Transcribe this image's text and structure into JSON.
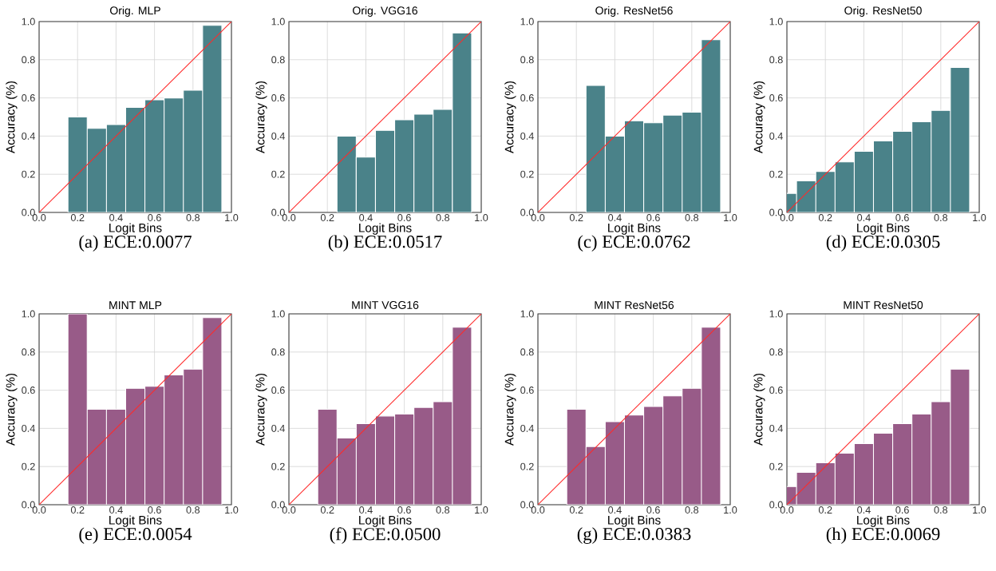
{
  "chart_data": [
    {
      "type": "bar",
      "title": "Orig. MLP",
      "xlabel": "Logit Bins",
      "ylabel": "Accuracy (%)",
      "annotations": [
        "(a) ECE:0.0077"
      ],
      "xlim": [
        0,
        1
      ],
      "ylim": [
        0,
        1
      ],
      "xticks": [
        {
          "value": 0,
          "label": "0.0"
        },
        {
          "value": 0.2,
          "label": "0.2"
        },
        {
          "value": 0.4,
          "label": "0.4"
        },
        {
          "value": 0.6,
          "label": "0.6"
        },
        {
          "value": 0.8,
          "label": "0.8"
        },
        {
          "value": 1,
          "label": "1.0"
        }
      ],
      "yticks": [
        {
          "value": 0,
          "label": "0.0"
        },
        {
          "value": 0.2,
          "label": "0.2"
        },
        {
          "value": 0.4,
          "label": "0.4"
        },
        {
          "value": 0.6,
          "label": "0.6"
        },
        {
          "value": 0.8,
          "label": "0.8"
        },
        {
          "value": 1,
          "label": "1.0"
        }
      ],
      "grid": true,
      "series": [
        {
          "color": "#4a8289",
          "x": [
            0.2,
            0.3,
            0.4,
            0.5,
            0.6,
            0.7,
            0.8,
            0.9
          ],
          "values": [
            0.5,
            0.44,
            0.46,
            0.55,
            0.59,
            0.6,
            0.64,
            0.98
          ]
        },
        {
          "type": "line",
          "color": "#ff2a2a",
          "x": [
            0,
            1
          ],
          "values": [
            0,
            1
          ]
        }
      ]
    },
    {
      "type": "bar",
      "title": "Orig. VGG16",
      "xlabel": "Logit Bins",
      "ylabel": "Accuracy (%)",
      "annotations": [
        "(b) ECE:0.0517"
      ],
      "xlim": [
        0,
        1
      ],
      "ylim": [
        0,
        1
      ],
      "xticks": [
        {
          "value": 0,
          "label": "0.0"
        },
        {
          "value": 0.2,
          "label": "0.2"
        },
        {
          "value": 0.4,
          "label": "0.4"
        },
        {
          "value": 0.6,
          "label": "0.6"
        },
        {
          "value": 0.8,
          "label": "0.8"
        },
        {
          "value": 1,
          "label": "1.0"
        }
      ],
      "yticks": [
        {
          "value": 0,
          "label": "0.0"
        },
        {
          "value": 0.2,
          "label": "0.2"
        },
        {
          "value": 0.4,
          "label": "0.4"
        },
        {
          "value": 0.6,
          "label": "0.6"
        },
        {
          "value": 0.8,
          "label": "0.8"
        },
        {
          "value": 1,
          "label": "1.0"
        }
      ],
      "grid": true,
      "series": [
        {
          "color": "#4a8289",
          "x": [
            0.3,
            0.4,
            0.5,
            0.6,
            0.7,
            0.8,
            0.9
          ],
          "values": [
            0.4,
            0.29,
            0.43,
            0.485,
            0.515,
            0.54,
            0.94
          ]
        },
        {
          "type": "line",
          "color": "#ff2a2a",
          "x": [
            0,
            1
          ],
          "values": [
            0,
            1
          ]
        }
      ]
    },
    {
      "type": "bar",
      "title": "Orig. ResNet56",
      "xlabel": "Logit Bins",
      "ylabel": "Accuracy (%)",
      "annotations": [
        "(c) ECE:0.0762"
      ],
      "xlim": [
        0,
        1
      ],
      "ylim": [
        0,
        1
      ],
      "xticks": [
        {
          "value": 0,
          "label": "0.0"
        },
        {
          "value": 0.2,
          "label": "0.2"
        },
        {
          "value": 0.4,
          "label": "0.4"
        },
        {
          "value": 0.6,
          "label": "0.6"
        },
        {
          "value": 0.8,
          "label": "0.8"
        },
        {
          "value": 1,
          "label": "1.0"
        }
      ],
      "yticks": [
        {
          "value": 0,
          "label": "0.0"
        },
        {
          "value": 0.2,
          "label": "0.2"
        },
        {
          "value": 0.4,
          "label": "0.4"
        },
        {
          "value": 0.6,
          "label": "0.6"
        },
        {
          "value": 0.8,
          "label": "0.8"
        },
        {
          "value": 1,
          "label": "1.0"
        }
      ],
      "grid": true,
      "series": [
        {
          "color": "#4a8289",
          "x": [
            0.3,
            0.4,
            0.5,
            0.6,
            0.7,
            0.8,
            0.9
          ],
          "values": [
            0.665,
            0.4,
            0.48,
            0.47,
            0.51,
            0.525,
            0.905
          ]
        },
        {
          "type": "line",
          "color": "#ff2a2a",
          "x": [
            0,
            1
          ],
          "values": [
            0,
            1
          ]
        }
      ]
    },
    {
      "type": "bar",
      "title": "Orig. ResNet50",
      "xlabel": "Logit Bins",
      "ylabel": "Accuracy (%)",
      "annotations": [
        "(d) ECE:0.0305"
      ],
      "xlim": [
        0,
        1
      ],
      "ylim": [
        0,
        1
      ],
      "xticks": [
        {
          "value": 0,
          "label": "0.0"
        },
        {
          "value": 0.2,
          "label": "0.2"
        },
        {
          "value": 0.4,
          "label": "0.4"
        },
        {
          "value": 0.6,
          "label": "0.6"
        },
        {
          "value": 0.8,
          "label": "0.8"
        },
        {
          "value": 1,
          "label": "1.0"
        }
      ],
      "yticks": [
        {
          "value": 0,
          "label": "0.0"
        },
        {
          "value": 0.2,
          "label": "0.2"
        },
        {
          "value": 0.4,
          "label": "0.4"
        },
        {
          "value": 0.6,
          "label": "0.6"
        },
        {
          "value": 0.8,
          "label": "0.8"
        },
        {
          "value": 1,
          "label": "1.0"
        }
      ],
      "grid": true,
      "series": [
        {
          "color": "#4a8289",
          "x": [
            0.0,
            0.1,
            0.2,
            0.3,
            0.4,
            0.5,
            0.6,
            0.7,
            0.8,
            0.9
          ],
          "values": [
            0.1,
            0.165,
            0.215,
            0.265,
            0.32,
            0.375,
            0.425,
            0.475,
            0.535,
            0.76
          ]
        },
        {
          "type": "line",
          "color": "#ff2a2a",
          "x": [
            0,
            1
          ],
          "values": [
            0,
            1
          ]
        }
      ]
    },
    {
      "type": "bar",
      "title": "MINT MLP",
      "xlabel": "Logit Bins",
      "ylabel": "Accuracy (%)",
      "annotations": [
        "(e) ECE:0.0054"
      ],
      "xlim": [
        0,
        1
      ],
      "ylim": [
        0,
        1
      ],
      "xticks": [
        {
          "value": 0,
          "label": "0.0"
        },
        {
          "value": 0.2,
          "label": "0.2"
        },
        {
          "value": 0.4,
          "label": "0.4"
        },
        {
          "value": 0.6,
          "label": "0.6"
        },
        {
          "value": 0.8,
          "label": "0.8"
        },
        {
          "value": 1,
          "label": "1.0"
        }
      ],
      "yticks": [
        {
          "value": 0,
          "label": "0.0"
        },
        {
          "value": 0.2,
          "label": "0.2"
        },
        {
          "value": 0.4,
          "label": "0.4"
        },
        {
          "value": 0.6,
          "label": "0.6"
        },
        {
          "value": 0.8,
          "label": "0.8"
        },
        {
          "value": 1,
          "label": "1.0"
        }
      ],
      "grid": true,
      "series": [
        {
          "color": "#985b88",
          "x": [
            0.2,
            0.3,
            0.4,
            0.5,
            0.6,
            0.7,
            0.8,
            0.9
          ],
          "values": [
            1.0,
            0.5,
            0.5,
            0.61,
            0.62,
            0.68,
            0.71,
            0.98
          ]
        },
        {
          "type": "line",
          "color": "#ff2a2a",
          "x": [
            0,
            1
          ],
          "values": [
            0,
            1
          ]
        }
      ]
    },
    {
      "type": "bar",
      "title": "MINT VGG16",
      "xlabel": "Logit Bins",
      "ylabel": "Accuracy (%)",
      "annotations": [
        "(f) ECE:0.0500"
      ],
      "xlim": [
        0,
        1
      ],
      "ylim": [
        0,
        1
      ],
      "xticks": [
        {
          "value": 0,
          "label": "0.0"
        },
        {
          "value": 0.2,
          "label": "0.2"
        },
        {
          "value": 0.4,
          "label": "0.4"
        },
        {
          "value": 0.6,
          "label": "0.6"
        },
        {
          "value": 0.8,
          "label": "0.8"
        },
        {
          "value": 1,
          "label": "1.0"
        }
      ],
      "yticks": [
        {
          "value": 0,
          "label": "0.0"
        },
        {
          "value": 0.2,
          "label": "0.2"
        },
        {
          "value": 0.4,
          "label": "0.4"
        },
        {
          "value": 0.6,
          "label": "0.6"
        },
        {
          "value": 0.8,
          "label": "0.8"
        },
        {
          "value": 1,
          "label": "1.0"
        }
      ],
      "grid": true,
      "series": [
        {
          "color": "#985b88",
          "x": [
            0.2,
            0.3,
            0.4,
            0.5,
            0.6,
            0.7,
            0.8,
            0.9
          ],
          "values": [
            0.5,
            0.35,
            0.425,
            0.465,
            0.475,
            0.51,
            0.54,
            0.93
          ]
        },
        {
          "type": "line",
          "color": "#ff2a2a",
          "x": [
            0,
            1
          ],
          "values": [
            0,
            1
          ]
        }
      ]
    },
    {
      "type": "bar",
      "title": "MINT ResNet56",
      "xlabel": "Logit Bins",
      "ylabel": "Accuracy (%)",
      "annotations": [
        "(g) ECE:0.0383"
      ],
      "xlim": [
        0,
        1
      ],
      "ylim": [
        0,
        1
      ],
      "xticks": [
        {
          "value": 0,
          "label": "0.0"
        },
        {
          "value": 0.2,
          "label": "0.2"
        },
        {
          "value": 0.4,
          "label": "0.4"
        },
        {
          "value": 0.6,
          "label": "0.6"
        },
        {
          "value": 0.8,
          "label": "0.8"
        },
        {
          "value": 1,
          "label": "1.0"
        }
      ],
      "yticks": [
        {
          "value": 0,
          "label": "0.0"
        },
        {
          "value": 0.2,
          "label": "0.2"
        },
        {
          "value": 0.4,
          "label": "0.4"
        },
        {
          "value": 0.6,
          "label": "0.6"
        },
        {
          "value": 0.8,
          "label": "0.8"
        },
        {
          "value": 1,
          "label": "1.0"
        }
      ],
      "grid": true,
      "series": [
        {
          "color": "#985b88",
          "x": [
            0.2,
            0.3,
            0.4,
            0.5,
            0.6,
            0.7,
            0.8,
            0.9
          ],
          "values": [
            0.5,
            0.305,
            0.435,
            0.47,
            0.515,
            0.57,
            0.61,
            0.93
          ]
        },
        {
          "type": "line",
          "color": "#ff2a2a",
          "x": [
            0,
            1
          ],
          "values": [
            0,
            1
          ]
        }
      ]
    },
    {
      "type": "bar",
      "title": "MINT ResNet50",
      "xlabel": "Logit Bins",
      "ylabel": "Accuracy (%)",
      "annotations": [
        "(h) ECE:0.0069"
      ],
      "xlim": [
        0,
        1
      ],
      "ylim": [
        0,
        1
      ],
      "xticks": [
        {
          "value": 0,
          "label": "0.0"
        },
        {
          "value": 0.2,
          "label": "0.2"
        },
        {
          "value": 0.4,
          "label": "0.4"
        },
        {
          "value": 0.6,
          "label": "0.6"
        },
        {
          "value": 0.8,
          "label": "0.8"
        },
        {
          "value": 1,
          "label": "1.0"
        }
      ],
      "yticks": [
        {
          "value": 0,
          "label": "0.0"
        },
        {
          "value": 0.2,
          "label": "0.2"
        },
        {
          "value": 0.4,
          "label": "0.4"
        },
        {
          "value": 0.6,
          "label": "0.6"
        },
        {
          "value": 0.8,
          "label": "0.8"
        },
        {
          "value": 1,
          "label": "1.0"
        }
      ],
      "grid": true,
      "series": [
        {
          "color": "#985b88",
          "x": [
            0.0,
            0.1,
            0.2,
            0.3,
            0.4,
            0.5,
            0.6,
            0.7,
            0.8,
            0.9
          ],
          "values": [
            0.095,
            0.17,
            0.22,
            0.27,
            0.32,
            0.375,
            0.425,
            0.475,
            0.54,
            0.71
          ]
        },
        {
          "type": "line",
          "color": "#ff2a2a",
          "x": [
            0,
            1
          ],
          "values": [
            0,
            1
          ]
        }
      ]
    }
  ]
}
